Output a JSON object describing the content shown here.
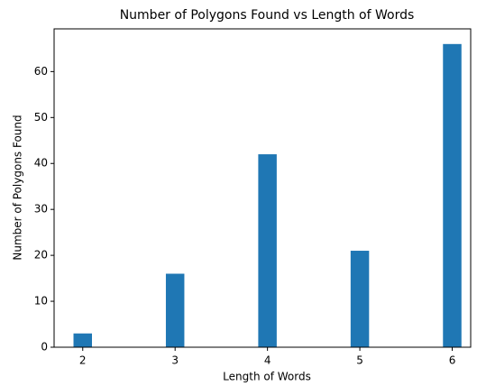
{
  "chart_data": {
    "type": "bar",
    "title": "Number of Polygons Found vs Length of Words",
    "xlabel": "Length of Words",
    "ylabel": "Number of Polygons Found",
    "x": [
      2,
      3,
      4,
      5,
      6
    ],
    "values": [
      3,
      16,
      42,
      21,
      66
    ],
    "color": "#1f77b4",
    "xlim": [
      1.69,
      6.2
    ],
    "xticks": [
      2,
      3,
      4,
      5,
      6
    ],
    "ylim": [
      0,
      69.3
    ],
    "yticks": [
      0,
      10,
      20,
      30,
      40,
      50,
      60
    ],
    "grid": false
  }
}
